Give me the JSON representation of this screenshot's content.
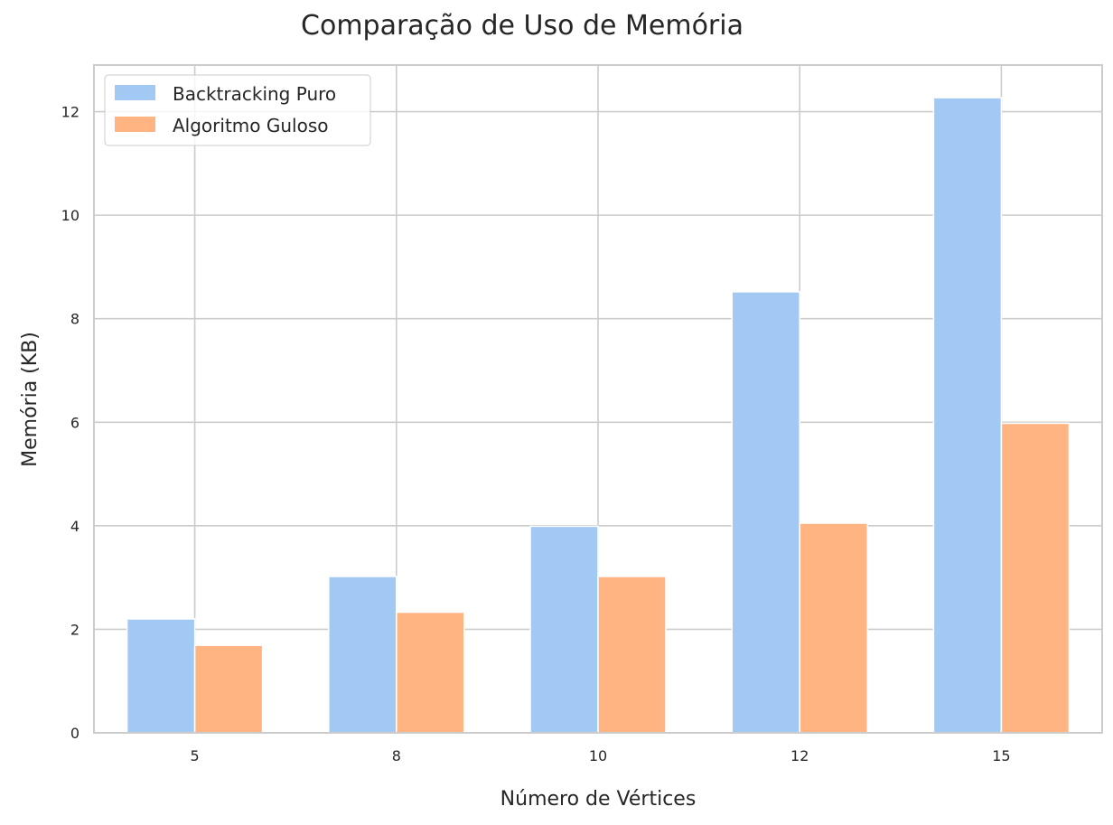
{
  "chart_data": {
    "type": "bar",
    "title": "Comparação de Uso de Memória",
    "xlabel": "Número de Vértices",
    "ylabel": "Memória (KB)",
    "categories": [
      "5",
      "8",
      "10",
      "12",
      "15"
    ],
    "series": [
      {
        "name": "Backtracking Puro",
        "color": "#a1c9f4",
        "values": [
          2.2,
          3.02,
          3.99,
          8.52,
          12.27
        ]
      },
      {
        "name": "Algoritmo Guloso",
        "color": "#ffb482",
        "values": [
          1.69,
          2.33,
          3.02,
          4.05,
          5.98
        ]
      }
    ],
    "ylim": [
      0,
      12.9
    ],
    "yticks": [
      "0",
      "2",
      "4",
      "6",
      "8",
      "10",
      "12"
    ],
    "grid": true,
    "legend_position": "top-left"
  }
}
